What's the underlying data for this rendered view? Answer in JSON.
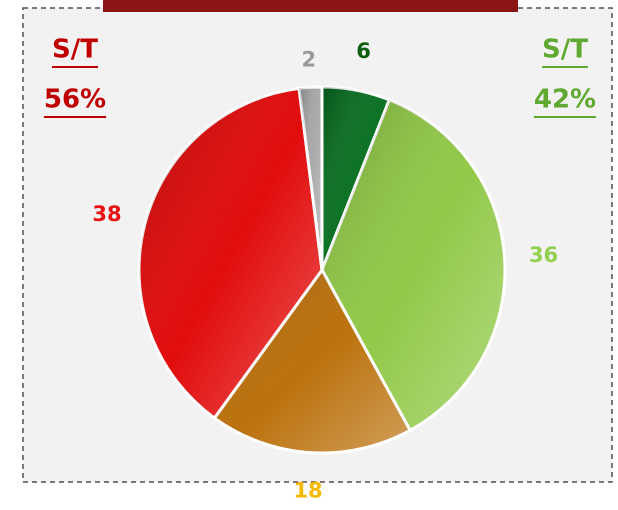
{
  "chart_data": {
    "type": "pie",
    "values": [
      6,
      36,
      18,
      38,
      2
    ],
    "colors": [
      "#006b1a",
      "#8cc63f",
      "#b86a00",
      "#e00000",
      "#a6a6a6"
    ],
    "label_colors": [
      "#0b5e0b",
      "#92d050",
      "#f5b800",
      "#e81010",
      "#9a9a9a"
    ],
    "annotations": [
      {
        "lines": [
          "S/T",
          "56%"
        ],
        "color": "#c00000"
      },
      {
        "lines": [
          "S/T",
          "42%"
        ],
        "color": "#5fa832"
      }
    ]
  }
}
